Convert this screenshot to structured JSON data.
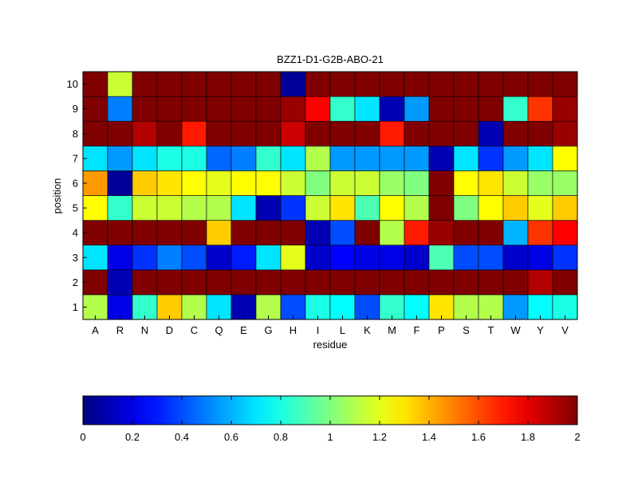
{
  "chart_data": {
    "type": "heatmap",
    "title": "BZZ1-D1-G2B-ABO-21",
    "xlabel": "residue",
    "ylabel": "position",
    "x_categories": [
      "A",
      "R",
      "N",
      "D",
      "C",
      "Q",
      "E",
      "G",
      "H",
      "I",
      "L",
      "K",
      "M",
      "F",
      "P",
      "S",
      "T",
      "W",
      "Y",
      "V"
    ],
    "y_categories": [
      "1",
      "2",
      "3",
      "4",
      "5",
      "6",
      "7",
      "8",
      "9",
      "10"
    ],
    "colormap": "jet",
    "clim": [
      0,
      2
    ],
    "colorbar": {
      "ticks": [
        0,
        0.2,
        0.4,
        0.6,
        0.8,
        1,
        1.2,
        1.4,
        1.6,
        1.8,
        2
      ],
      "tick_labels": [
        "0",
        "0.2",
        "0.4",
        "0.6",
        "0.8",
        "1",
        "1.2",
        "1.4",
        "1.6",
        "1.8",
        "2"
      ],
      "location": "bottom"
    },
    "values": [
      [
        1.1,
        0.2,
        0.85,
        1.35,
        1.1,
        0.7,
        0.1,
        1.1,
        0.4,
        0.8,
        0.75,
        0.4,
        0.85,
        0.75,
        1.3,
        1.1,
        1.1,
        0.55,
        0.75,
        0.8
      ],
      [
        2,
        0.1,
        2,
        2,
        2,
        2,
        2,
        2,
        2,
        2,
        2,
        2,
        2,
        2,
        2,
        2,
        2,
        2,
        1.9,
        2
      ],
      [
        0.7,
        0.2,
        0.35,
        0.5,
        0.4,
        0.15,
        0.3,
        0.7,
        1.2,
        0.15,
        0.25,
        0.2,
        0.2,
        0.15,
        0.9,
        0.4,
        0.4,
        0.15,
        0.2,
        0.35
      ],
      [
        2,
        2,
        2,
        2,
        2,
        1.35,
        2,
        2,
        2,
        0.1,
        0.4,
        2,
        1.1,
        1.7,
        1.95,
        2,
        2,
        0.6,
        1.65,
        1.75
      ],
      [
        1.25,
        0.85,
        1.15,
        1.15,
        1.1,
        1.1,
        0.7,
        0.1,
        0.35,
        1.15,
        1.3,
        0.9,
        1.25,
        1.1,
        2,
        1.0,
        1.25,
        1.35,
        1.2,
        1.35
      ],
      [
        1.45,
        0.05,
        1.35,
        1.3,
        1.25,
        1.2,
        1.25,
        1.25,
        1.15,
        1.0,
        1.15,
        1.15,
        1.05,
        1.0,
        2,
        1.25,
        1.3,
        1.15,
        1.05,
        1.05
      ],
      [
        0.7,
        0.55,
        0.7,
        0.8,
        0.8,
        0.45,
        0.5,
        0.85,
        0.7,
        1.1,
        0.55,
        0.55,
        0.55,
        0.55,
        0.1,
        0.7,
        0.35,
        0.55,
        0.7,
        1.25
      ],
      [
        2,
        2,
        1.9,
        2,
        1.7,
        2,
        2,
        2,
        1.85,
        2,
        2,
        2,
        1.7,
        2,
        2,
        2,
        0.1,
        2,
        2,
        1.95
      ],
      [
        2,
        0.5,
        2,
        2,
        2,
        2,
        2,
        2,
        1.95,
        1.75,
        0.85,
        0.7,
        0.1,
        0.55,
        2,
        2,
        2,
        0.85,
        1.65,
        1.95
      ],
      [
        2,
        1.15,
        2,
        2,
        2,
        2,
        2,
        2,
        0.05,
        2,
        2,
        2,
        2,
        2,
        2,
        2,
        2,
        2,
        2,
        2
      ]
    ]
  }
}
